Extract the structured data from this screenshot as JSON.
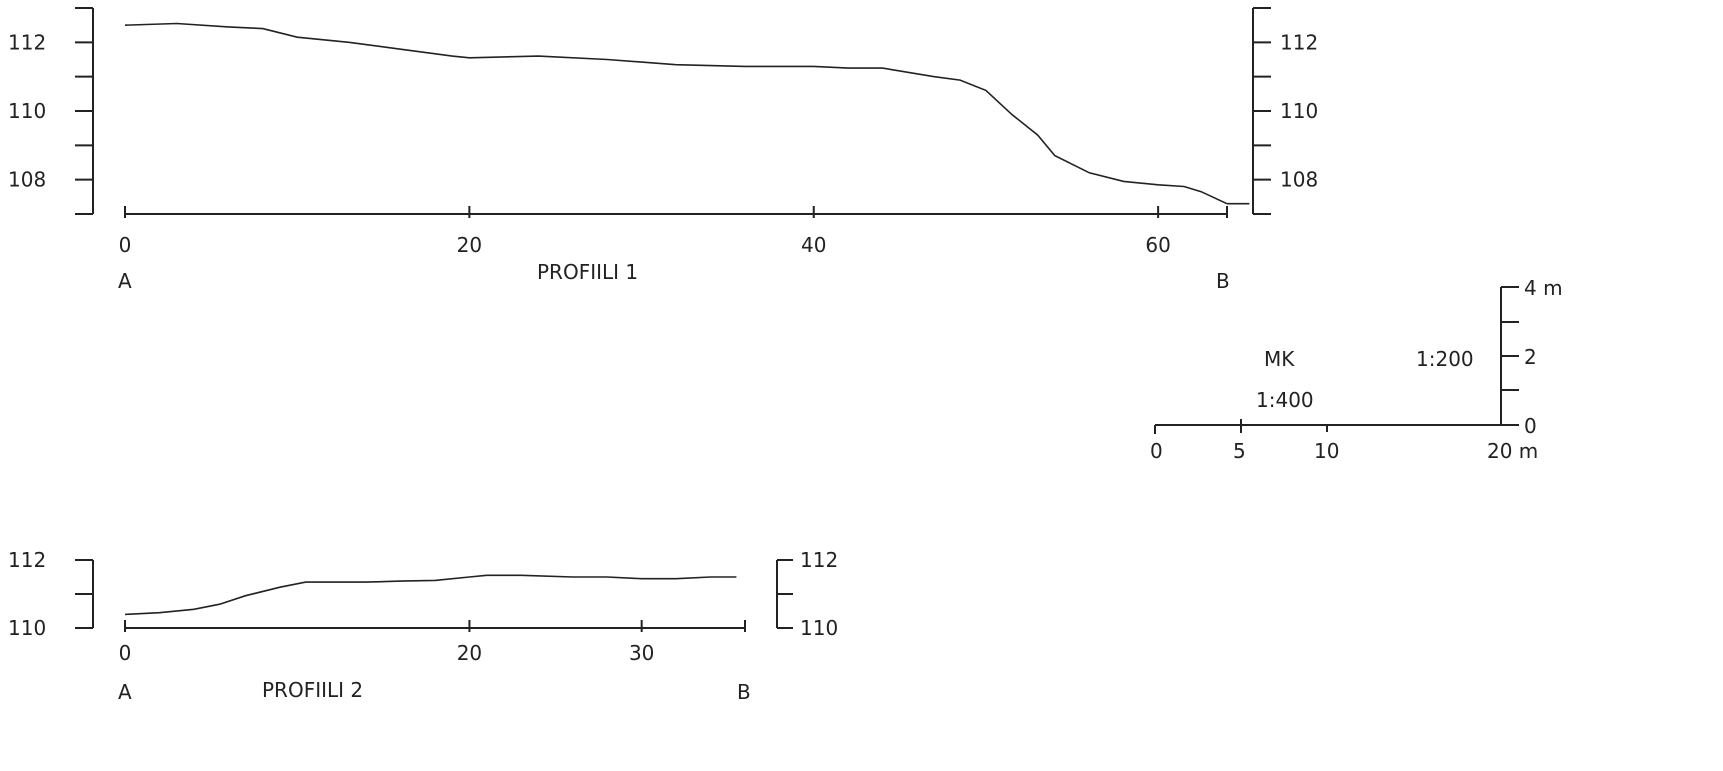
{
  "chart_data": [
    {
      "type": "line",
      "title": "PROFIILI 1",
      "start_label": "A",
      "end_label": "B",
      "x_ticks": [
        0,
        20,
        40,
        60
      ],
      "y_ticks": [
        108,
        110,
        112
      ],
      "xlim": [
        0,
        64
      ],
      "ylim": [
        107,
        113
      ],
      "x": [
        0,
        3,
        6,
        8,
        10,
        13,
        16,
        19,
        20,
        24,
        28,
        32,
        36,
        40,
        42,
        44,
        47,
        48.5,
        50,
        51.5,
        53,
        54,
        56,
        58,
        60,
        61.5,
        62.5,
        64
      ],
      "y": [
        112.5,
        112.55,
        112.45,
        112.4,
        112.15,
        112.0,
        111.8,
        111.6,
        111.55,
        111.6,
        111.5,
        111.35,
        111.3,
        111.3,
        111.25,
        111.25,
        111.0,
        110.9,
        110.6,
        109.9,
        109.3,
        108.7,
        108.2,
        107.95,
        107.85,
        107.8,
        107.65,
        107.3
      ],
      "tail": {
        "x": [
          64,
          65.3
        ],
        "y": [
          107.3,
          107.3
        ]
      }
    },
    {
      "type": "line",
      "title": "PROFIILI 2",
      "start_label": "A",
      "end_label": "B",
      "x_ticks": [
        0,
        20,
        30
      ],
      "y_ticks": [
        110,
        112
      ],
      "xlim": [
        0,
        36
      ],
      "ylim": [
        110,
        112
      ],
      "x": [
        0,
        2,
        4,
        5.5,
        7,
        9,
        10.5,
        12,
        14,
        16,
        18,
        20,
        21,
        23,
        26,
        28,
        30,
        32,
        34,
        35.5
      ],
      "y": [
        110.4,
        110.45,
        110.55,
        110.7,
        110.95,
        111.2,
        111.35,
        111.35,
        111.35,
        111.38,
        111.4,
        111.5,
        111.55,
        111.55,
        111.5,
        111.5,
        111.45,
        111.45,
        111.5,
        111.5
      ]
    }
  ],
  "scale": {
    "title": "MK",
    "vertical_ratio": "1:200",
    "horizontal_ratio": "1:400",
    "horizontal_ticks": [
      "0",
      "5",
      "10",
      "20 m"
    ],
    "vertical_ticks": [
      "0",
      "2",
      "4 m"
    ]
  }
}
